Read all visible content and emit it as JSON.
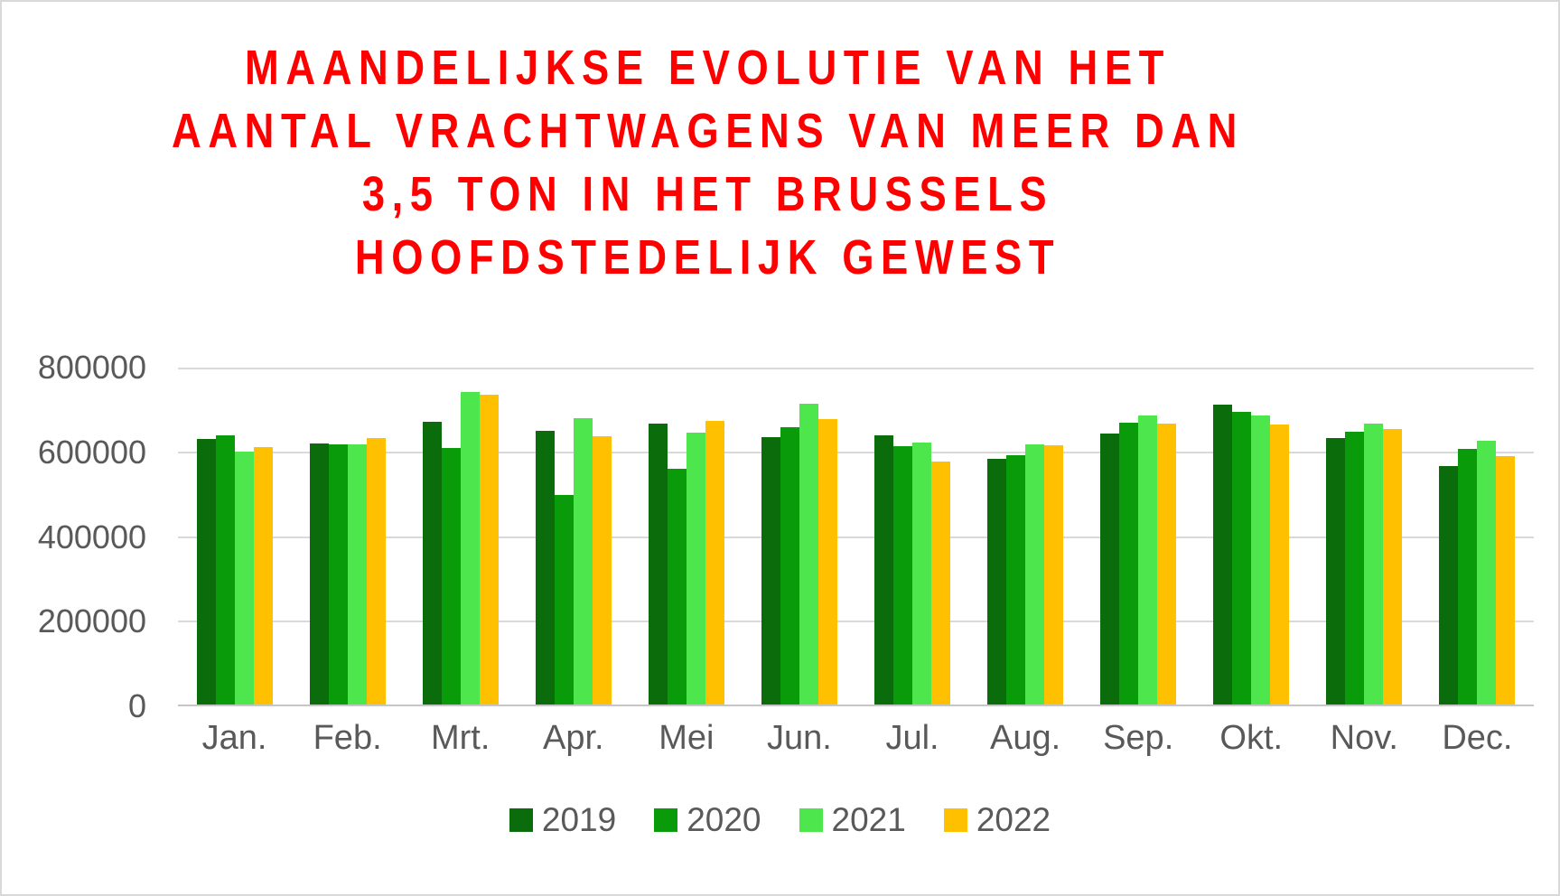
{
  "chart_data": {
    "type": "bar",
    "title_lines": [
      "MAANDELIJKSE EVOLUTIE VAN HET",
      "AANTAL VRACHTWAGENS VAN MEER DAN",
      "3,5 TON IN HET BRUSSELS",
      "HOOFDSTEDELIJK GEWEST"
    ],
    "title_color": "#ff0000",
    "categories": [
      "Jan.",
      "Feb.",
      "Mrt.",
      "Apr.",
      "Mei",
      "Jun.",
      "Jul.",
      "Aug.",
      "Sep.",
      "Okt.",
      "Nov.",
      "Dec."
    ],
    "series": [
      {
        "name": "2019",
        "color": "#0b6c0b",
        "values": [
          631000,
          620000,
          672000,
          650000,
          668000,
          635000,
          640000,
          583000,
          644000,
          713000,
          632000,
          567000
        ]
      },
      {
        "name": "2020",
        "color": "#0a9b0a",
        "values": [
          640000,
          617000,
          610000,
          498000,
          560000,
          659000,
          613000,
          592000,
          670000,
          695000,
          648000,
          607000
        ]
      },
      {
        "name": "2021",
        "color": "#4de64d",
        "values": [
          600000,
          618000,
          742000,
          679000,
          646000,
          715000,
          623000,
          618000,
          687000,
          686000,
          666000,
          626000
        ]
      },
      {
        "name": "2022",
        "color": "#ffc000",
        "values": [
          612000,
          632000,
          736000,
          637000,
          674000,
          678000,
          578000,
          615000,
          668000,
          665000,
          655000,
          590000
        ]
      }
    ],
    "ylim": [
      0,
      800000
    ],
    "y_ticks": [
      "800000",
      "600000",
      "400000",
      "200000",
      "0"
    ],
    "grid": "horizontal",
    "gridline_color": "#d9d9d9",
    "axis_line_color": "#c6c6c6",
    "axis_text_color": "#595959",
    "legend_position": "bottom",
    "legend_entries": [
      "2019",
      "2020",
      "2021",
      "2022"
    ]
  }
}
